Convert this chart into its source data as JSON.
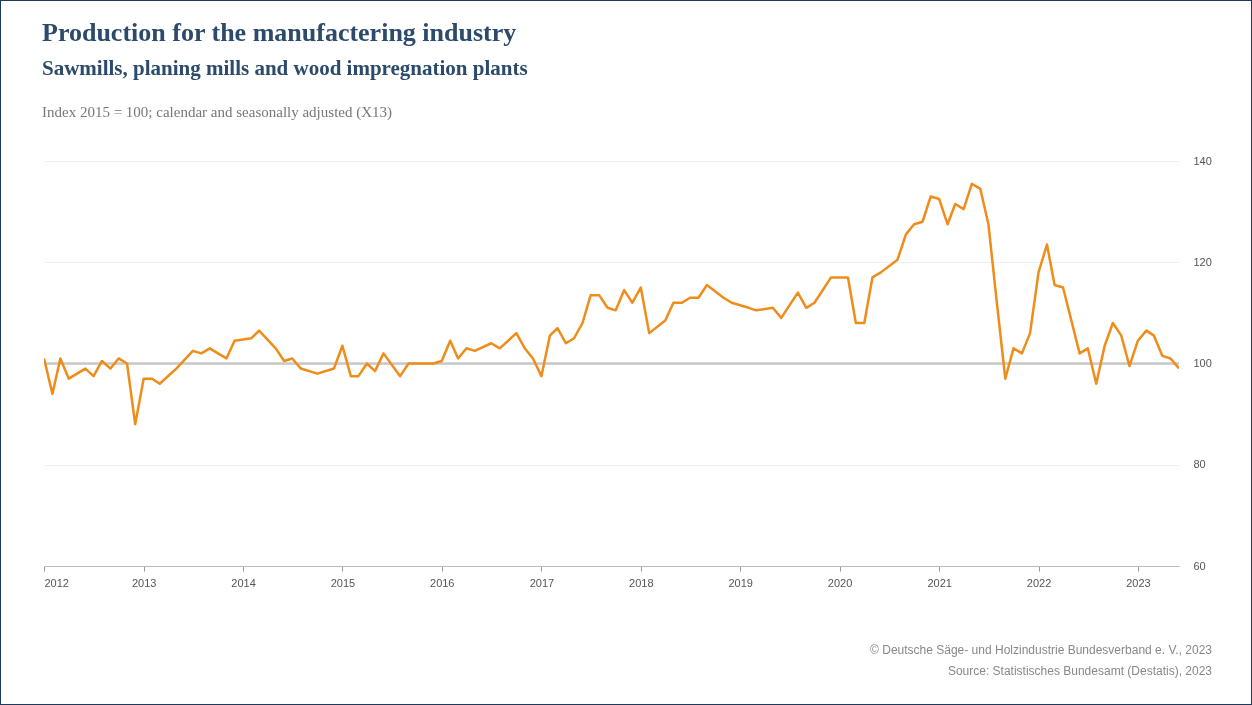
{
  "chart_data": {
    "type": "line",
    "title": "Production for the manufactering industry",
    "subtitle": "Sawmills, planing mills and wood impregnation plants",
    "ylabel": "Index 2015 = 100; calendar and seasonally adjusted (X13)",
    "x": [
      "2012-01",
      "2012-02",
      "2012-03",
      "2012-04",
      "2012-06",
      "2012-07",
      "2012-08",
      "2012-09",
      "2012-10",
      "2012-11",
      "2012-12",
      "2013-01",
      "2013-02",
      "2013-03",
      "2013-05",
      "2013-07",
      "2013-08",
      "2013-09",
      "2013-10",
      "2013-11",
      "2013-12",
      "2014-02",
      "2014-03",
      "2014-05",
      "2014-06",
      "2014-07",
      "2014-08",
      "2014-10",
      "2014-12",
      "2015-01",
      "2015-02",
      "2015-03",
      "2015-04",
      "2015-05",
      "2015-06",
      "2015-08",
      "2015-09",
      "2015-12",
      "2016-01",
      "2016-02",
      "2016-03",
      "2016-04",
      "2016-05",
      "2016-07",
      "2016-08",
      "2016-10",
      "2016-11",
      "2016-12",
      "2017-01",
      "2017-02",
      "2017-03",
      "2017-04",
      "2017-05",
      "2017-06",
      "2017-07",
      "2017-08",
      "2017-09",
      "2017-10",
      "2017-11",
      "2017-12",
      "2018-01",
      "2018-02",
      "2018-04",
      "2018-05",
      "2018-06",
      "2018-07",
      "2018-08",
      "2018-09",
      "2018-11",
      "2018-12",
      "2019-02",
      "2019-03",
      "2019-05",
      "2019-06",
      "2019-08",
      "2019-09",
      "2019-10",
      "2019-12",
      "2020-02",
      "2020-03",
      "2020-04",
      "2020-05",
      "2020-06",
      "2020-08",
      "2020-09",
      "2020-10",
      "2020-11",
      "2020-12",
      "2021-01",
      "2021-02",
      "2021-03",
      "2021-04",
      "2021-05",
      "2021-06",
      "2021-07",
      "2021-08",
      "2021-09",
      "2021-10",
      "2021-11",
      "2021-12",
      "2022-01",
      "2022-02",
      "2022-03",
      "2022-04",
      "2022-06",
      "2022-07",
      "2022-08",
      "2022-09",
      "2022-10",
      "2022-11",
      "2022-12",
      "2023-01",
      "2023-02",
      "2023-03",
      "2023-04",
      "2023-05",
      "2023-06"
    ],
    "series": [
      {
        "color": "#ef8c1a",
        "values": [
          101,
          94,
          101,
          97,
          99,
          97.5,
          100.5,
          99,
          101,
          100,
          88,
          97,
          97,
          96,
          99,
          102.5,
          102,
          103,
          102,
          101,
          104.5,
          105,
          106.5,
          103,
          100.5,
          101,
          99,
          98,
          99,
          103.5,
          97.5,
          97.5,
          100,
          98.5,
          102,
          97.5,
          100,
          100,
          100.5,
          104.5,
          101,
          103,
          102.5,
          104,
          103,
          106,
          103,
          101,
          97.5,
          105.5,
          107,
          104,
          105,
          108,
          113.5,
          113.5,
          111,
          110.5,
          114.5,
          112,
          115,
          106,
          108.5,
          112,
          112,
          113,
          113,
          115.5,
          113,
          112,
          111,
          110.5,
          111,
          109,
          114,
          111,
          112,
          117,
          117,
          108,
          108,
          117,
          118,
          120.5,
          125.5,
          127.5,
          128,
          133,
          132.5,
          127.5,
          131.5,
          130.5,
          135.5,
          134.5,
          127.5,
          112,
          97,
          103,
          102,
          106,
          118,
          123.5,
          115.5,
          115,
          102,
          103,
          96,
          103.5,
          108,
          105.5,
          99.5,
          104.5,
          106.5,
          105.5,
          101.5,
          101,
          99
        ]
      }
    ],
    "xlim": [
      "2012-01",
      "2023-06"
    ],
    "xticks": [
      {
        "value": "2012",
        "label": "2012"
      },
      {
        "value": "2013",
        "label": "2013"
      },
      {
        "value": "2014",
        "label": "2014"
      },
      {
        "value": "2015",
        "label": "2015"
      },
      {
        "value": "2016",
        "label": "2016"
      },
      {
        "value": "2017",
        "label": "2017"
      },
      {
        "value": "2018",
        "label": "2018"
      },
      {
        "value": "2019",
        "label": "2019"
      },
      {
        "value": "2020",
        "label": "2020"
      },
      {
        "value": "2021",
        "label": "2021"
      },
      {
        "value": "2022",
        "label": "2022"
      },
      {
        "value": "2023",
        "label": "2023"
      }
    ],
    "ylim": [
      60,
      140
    ],
    "yticks": [
      60,
      80,
      100,
      120,
      140
    ],
    "grid": "y",
    "ref_lines": [
      {
        "axis": "y",
        "value": 100,
        "color": "#c8c8c8"
      }
    ],
    "annotations": [
      "© Deutsche Säge- und Holzindustrie Bundesverband e. V., 2023",
      "Source: Statistisches Bundesamt (Destatis), 2023"
    ]
  }
}
